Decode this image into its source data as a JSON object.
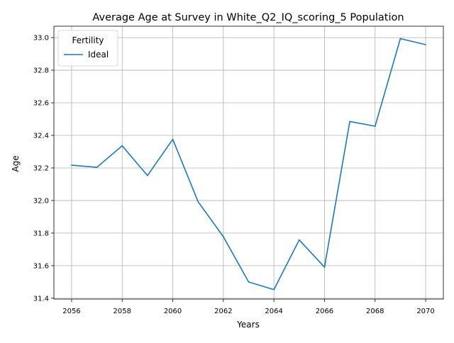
{
  "chart_data": {
    "type": "line",
    "title": "Average Age at Survey in White_Q2_IQ_scoring_5 Population",
    "xlabel": "Years",
    "ylabel": "Age",
    "xlim": [
      2055.3,
      2070.7
    ],
    "ylim": [
      31.395,
      33.07
    ],
    "xticks": [
      2056,
      2058,
      2060,
      2062,
      2064,
      2066,
      2068,
      2070
    ],
    "yticks": [
      31.4,
      31.6,
      31.8,
      32.0,
      32.2,
      32.4,
      32.6,
      32.8,
      33.0
    ],
    "grid": true,
    "legend": {
      "title": "Fertility",
      "placement": "top-left"
    },
    "series": [
      {
        "name": "Ideal",
        "color": "#1f77b4",
        "x": [
          2056,
          2057,
          2058,
          2059,
          2060,
          2061,
          2062,
          2063,
          2064,
          2065,
          2066,
          2067,
          2068,
          2069,
          2070
        ],
        "y": [
          32.217,
          32.204,
          32.336,
          32.153,
          32.376,
          31.993,
          31.778,
          31.5,
          31.453,
          31.758,
          31.591,
          32.485,
          32.456,
          32.994,
          32.957
        ]
      }
    ]
  }
}
